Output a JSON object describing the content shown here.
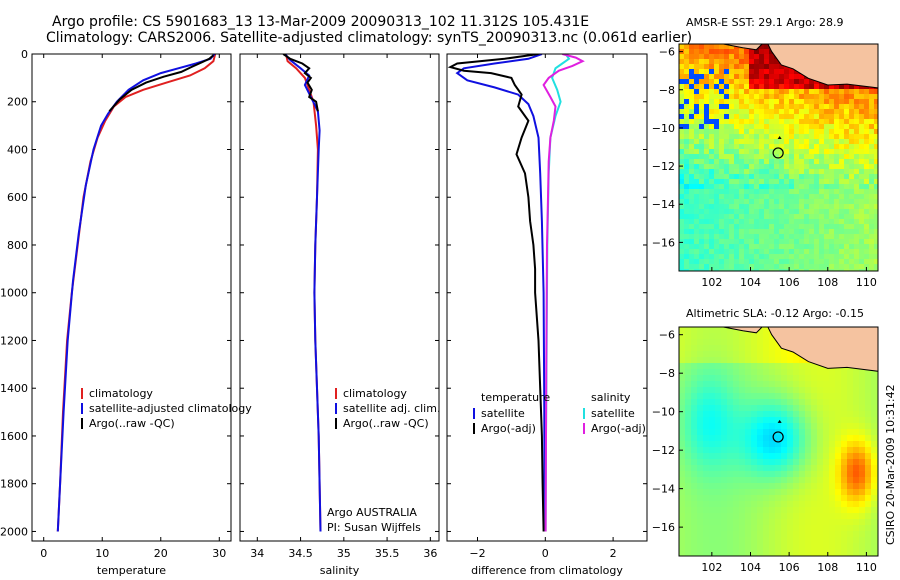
{
  "header": {
    "title_line1": "Argo profile: CS 5901683_13 13-Mar-2009 20090313_102 11.312S 105.431E",
    "title_line2": "Climatology: CARS2006. Satellite-adjusted climatology: synTS_20090313.nc (0.061d earlier)"
  },
  "footer": {
    "credit": "CSIRO 20-Mar-2009 10:31:42"
  },
  "colors": {
    "climatology": "#e02020",
    "satellite": "#1010e0",
    "argo": "#000000",
    "salinity_sat": "#20e0e0",
    "salinity_argo": "#e020e0",
    "land": "#f5c3a0"
  },
  "chart_data": [
    {
      "type": "line",
      "id": "temperature",
      "title": "",
      "xlabel": "temperature",
      "ylabel": "",
      "xlim": [
        -2,
        32
      ],
      "ylim": [
        2040,
        0
      ],
      "xticks": [
        0,
        10,
        20,
        30
      ],
      "yticks": [
        0,
        200,
        400,
        600,
        800,
        1000,
        1200,
        1400,
        1600,
        1800,
        2000
      ],
      "legend": {
        "placement": "bottom",
        "entries": [
          "climatology",
          "satellite-adjusted climatology",
          "Argo(..raw -QC)"
        ]
      },
      "series": [
        {
          "name": "climatology",
          "color": "#e02020",
          "points": [
            [
              29.3,
              0
            ],
            [
              29.0,
              30
            ],
            [
              27.5,
              60
            ],
            [
              25,
              90
            ],
            [
              21,
              120
            ],
            [
              17,
              150
            ],
            [
              14,
              180
            ],
            [
              12,
              220
            ],
            [
              10.5,
              280
            ],
            [
              9.2,
              350
            ],
            [
              8,
              450
            ],
            [
              6.8,
              600
            ],
            [
              5.8,
              800
            ],
            [
              4.8,
              1000
            ],
            [
              4,
              1200
            ],
            [
              3.3,
              1500
            ],
            [
              2.8,
              1800
            ],
            [
              2.4,
              2000
            ]
          ]
        },
        {
          "name": "satellite-adjusted climatology",
          "color": "#1010e0",
          "points": [
            [
              29.2,
              0
            ],
            [
              28.5,
              20
            ],
            [
              26,
              40
            ],
            [
              23,
              60
            ],
            [
              20,
              80
            ],
            [
              17,
              110
            ],
            [
              14.5,
              150
            ],
            [
              12.5,
              200
            ],
            [
              11,
              250
            ],
            [
              9.8,
              300
            ],
            [
              8.5,
              400
            ],
            [
              7.2,
              550
            ],
            [
              6,
              750
            ],
            [
              5,
              950
            ],
            [
              4.1,
              1200
            ],
            [
              3.4,
              1500
            ],
            [
              2.8,
              1800
            ],
            [
              2.4,
              2000
            ]
          ]
        },
        {
          "name": "Argo(..raw -QC)",
          "color": "#000000",
          "points": [
            [
              29.0,
              5
            ],
            [
              28.3,
              20
            ],
            [
              27.0,
              35
            ],
            [
              25.2,
              55
            ],
            [
              23.5,
              75
            ],
            [
              20.5,
              95
            ],
            [
              17.5,
              120
            ],
            [
              15,
              150
            ],
            [
              13,
              190
            ],
            [
              11.2,
              240
            ]
          ]
        }
      ]
    },
    {
      "type": "line",
      "id": "salinity",
      "title": "",
      "xlabel": "salinity",
      "ylabel": "",
      "xlim": [
        33.8,
        36.1
      ],
      "ylim": [
        2040,
        0
      ],
      "xticks": [
        34,
        34.5,
        35,
        35.5,
        36
      ],
      "xticklabels": [
        "34",
        "34.5",
        "35",
        "35.5",
        "36"
      ],
      "legend": {
        "placement": "bottom",
        "entries": [
          "climatology",
          "satellite adj. clim.",
          "Argo(..raw -QC)"
        ]
      },
      "annotation": [
        "Argo AUSTRALIA",
        "PI: Susan Wijffels"
      ],
      "series": [
        {
          "name": "climatology",
          "color": "#e02020",
          "points": [
            [
              34.33,
              0
            ],
            [
              34.35,
              30
            ],
            [
              34.45,
              60
            ],
            [
              34.55,
              100
            ],
            [
              34.6,
              150
            ],
            [
              34.65,
              200
            ],
            [
              34.68,
              300
            ],
            [
              34.7,
              400
            ],
            [
              34.69,
              600
            ],
            [
              34.67,
              800
            ],
            [
              34.66,
              1000
            ],
            [
              34.67,
              1200
            ],
            [
              34.69,
              1400
            ],
            [
              34.71,
              1600
            ],
            [
              34.72,
              1800
            ],
            [
              34.73,
              2000
            ]
          ]
        },
        {
          "name": "satellite adj. clim.",
          "color": "#1010e0",
          "points": [
            [
              34.32,
              0
            ],
            [
              34.38,
              25
            ],
            [
              34.5,
              60
            ],
            [
              34.6,
              90
            ],
            [
              34.55,
              130
            ],
            [
              34.62,
              180
            ],
            [
              34.7,
              240
            ],
            [
              34.72,
              320
            ],
            [
              34.71,
              400
            ],
            [
              34.69,
              600
            ],
            [
              34.67,
              800
            ],
            [
              34.66,
              1000
            ],
            [
              34.67,
              1200
            ],
            [
              34.69,
              1400
            ],
            [
              34.71,
              1600
            ],
            [
              34.72,
              1800
            ],
            [
              34.73,
              2000
            ]
          ]
        },
        {
          "name": "Argo(..raw -QC)",
          "color": "#000000",
          "points": [
            [
              34.3,
              0
            ],
            [
              34.38,
              20
            ],
            [
              34.52,
              40
            ],
            [
              34.6,
              60
            ],
            [
              34.55,
              80
            ],
            [
              34.62,
              100
            ],
            [
              34.58,
              120
            ],
            [
              34.63,
              150
            ],
            [
              34.6,
              180
            ],
            [
              34.68,
              200
            ],
            [
              34.7,
              240
            ]
          ]
        }
      ]
    },
    {
      "type": "line",
      "id": "difference",
      "title": "",
      "xlabel": "difference from climatology",
      "ylabel": "",
      "xlim": [
        -2.9,
        3.0
      ],
      "ylim": [
        2040,
        0
      ],
      "xticks": [
        -2,
        0,
        2
      ],
      "xticklabels": [
        "−2",
        "0",
        "2"
      ],
      "legend": {
        "placement": "bottom",
        "groups": [
          {
            "heading": "temperature",
            "entries": [
              "satellite",
              "Argo(-adj)"
            ]
          },
          {
            "heading": "salinity",
            "entries": [
              "satellite",
              "Argo(-adj)"
            ]
          }
        ]
      },
      "series": [
        {
          "name": "temperature satellite",
          "color": "#1010e0",
          "points": [
            [
              -0.1,
              0
            ],
            [
              -0.5,
              20
            ],
            [
              -1.5,
              40
            ],
            [
              -2.4,
              60
            ],
            [
              -2.6,
              80
            ],
            [
              -2.3,
              110
            ],
            [
              -1.5,
              140
            ],
            [
              -0.8,
              170
            ],
            [
              -0.5,
              210
            ],
            [
              -0.35,
              260
            ],
            [
              -0.2,
              350
            ],
            [
              -0.15,
              500
            ],
            [
              -0.1,
              700
            ],
            [
              -0.05,
              1000
            ],
            [
              -0.03,
              1500
            ],
            [
              -0.02,
              2000
            ]
          ]
        },
        {
          "name": "temperature Argo(-adj)",
          "color": "#000000",
          "points": [
            [
              -0.2,
              0
            ],
            [
              -1.2,
              20
            ],
            [
              -2.6,
              40
            ],
            [
              -2.8,
              55
            ],
            [
              -2.4,
              70
            ],
            [
              -1.6,
              80
            ],
            [
              -1.0,
              100
            ],
            [
              -0.9,
              130
            ],
            [
              -0.7,
              170
            ],
            [
              -0.8,
              220
            ],
            [
              -0.5,
              280
            ],
            [
              -0.7,
              350
            ],
            [
              -0.85,
              420
            ],
            [
              -0.6,
              500
            ],
            [
              -0.5,
              600
            ],
            [
              -0.45,
              700
            ],
            [
              -0.35,
              800
            ],
            [
              -0.3,
              900
            ],
            [
              -0.3,
              1000
            ],
            [
              -0.2,
              1200
            ],
            [
              -0.15,
              1400
            ],
            [
              -0.1,
              1600
            ],
            [
              -0.08,
              1800
            ],
            [
              -0.05,
              2000
            ]
          ]
        },
        {
          "name": "salinity satellite",
          "color": "#20e0e0",
          "points": [
            [
              0.6,
              0
            ],
            [
              0.7,
              20
            ],
            [
              0.5,
              40
            ],
            [
              0.3,
              60
            ],
            [
              0.2,
              100
            ],
            [
              0.35,
              150
            ],
            [
              0.45,
              200
            ],
            [
              0.3,
              260
            ],
            [
              0.15,
              350
            ],
            [
              0.1,
              500
            ],
            [
              0.06,
              800
            ],
            [
              0.04,
              1200
            ],
            [
              0.02,
              1600
            ],
            [
              0.01,
              2000
            ]
          ]
        },
        {
          "name": "salinity Argo(-adj)",
          "color": "#e020e0",
          "points": [
            [
              0.5,
              0
            ],
            [
              0.9,
              15
            ],
            [
              1.1,
              30
            ],
            [
              0.8,
              50
            ],
            [
              0.4,
              70
            ],
            [
              0.1,
              100
            ],
            [
              -0.05,
              130
            ],
            [
              0.15,
              180
            ],
            [
              0.3,
              220
            ],
            [
              0.25,
              280
            ],
            [
              0.15,
              350
            ],
            [
              0.1,
              450
            ],
            [
              0.08,
              600
            ],
            [
              0.05,
              800
            ],
            [
              0.04,
              1000
            ],
            [
              0.03,
              1300
            ],
            [
              0.02,
              1600
            ],
            [
              0.01,
              2000
            ]
          ]
        }
      ]
    },
    {
      "type": "heatmap",
      "id": "sst-map",
      "title": "AMSR-E SST: 29.1  Argo: 28.9",
      "xlim": [
        100.3,
        110.6
      ],
      "ylim": [
        -17.5,
        -5.6
      ],
      "xticks": [
        102,
        104,
        106,
        108,
        110
      ],
      "yticks": [
        -6,
        -8,
        -10,
        -12,
        -14,
        -16
      ],
      "argo_position": {
        "lon": 105.431,
        "lat": -11.312
      },
      "colormap": "jet"
    },
    {
      "type": "heatmap",
      "id": "sla-map",
      "title": "Altimetric SLA: -0.12  Argo: -0.15",
      "xlim": [
        100.3,
        110.6
      ],
      "ylim": [
        -17.5,
        -5.6
      ],
      "xticks": [
        102,
        104,
        106,
        108,
        110
      ],
      "yticks": [
        -6,
        -8,
        -10,
        -12,
        -14,
        -16
      ],
      "argo_position": {
        "lon": 105.431,
        "lat": -11.312
      },
      "colormap": "jet"
    }
  ]
}
